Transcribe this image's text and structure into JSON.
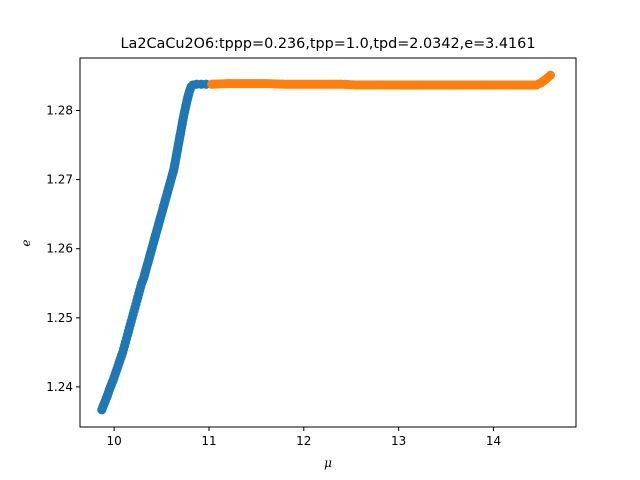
{
  "chart_data": {
    "type": "scatter",
    "title": "La2CaCu2O6:tppp=0.236,tpp=1.0,tpd=2.0342,e=3.4161",
    "xlabel": "μ",
    "ylabel": "e",
    "xlim": [
      9.64,
      14.87
    ],
    "ylim": [
      1.2342,
      1.2876
    ],
    "x_ticks": [
      "10",
      "11",
      "12",
      "13",
      "14"
    ],
    "x_tick_values": [
      10,
      11,
      12,
      13,
      14
    ],
    "y_ticks": [
      "1.24",
      "1.25",
      "1.26",
      "1.27",
      "1.28"
    ],
    "y_tick_values": [
      1.24,
      1.25,
      1.26,
      1.27,
      1.28
    ],
    "grid": false,
    "colors": {
      "series1": "#1f77b4",
      "series2": "#ff7f0e"
    },
    "series": [
      {
        "color": "#1f77b4",
        "points": [
          [
            9.87,
            1.2367
          ],
          [
            9.89,
            1.2374
          ],
          [
            9.91,
            1.2381
          ],
          [
            9.93,
            1.2388
          ],
          [
            9.95,
            1.2396
          ],
          [
            9.97,
            1.2403
          ],
          [
            9.99,
            1.241
          ],
          [
            10.01,
            1.2418
          ],
          [
            10.03,
            1.2426
          ],
          [
            10.05,
            1.2434
          ],
          [
            10.07,
            1.2442
          ],
          [
            10.09,
            1.245
          ],
          [
            10.11,
            1.246
          ],
          [
            10.13,
            1.247
          ],
          [
            10.15,
            1.248
          ],
          [
            10.17,
            1.249
          ],
          [
            10.19,
            1.25
          ],
          [
            10.21,
            1.251
          ],
          [
            10.23,
            1.252
          ],
          [
            10.25,
            1.253
          ],
          [
            10.27,
            1.254
          ],
          [
            10.29,
            1.255
          ],
          [
            10.31,
            1.2557
          ],
          [
            10.63,
            1.2715
          ],
          [
            10.65,
            1.273
          ],
          [
            10.67,
            1.2745
          ],
          [
            10.69,
            1.276
          ],
          [
            10.71,
            1.2775
          ],
          [
            10.73,
            1.279
          ],
          [
            10.75,
            1.2803
          ],
          [
            10.77,
            1.2815
          ],
          [
            10.79,
            1.2826
          ],
          [
            10.81,
            1.2834
          ],
          [
            10.83,
            1.2837
          ],
          [
            10.87,
            1.2838
          ],
          [
            10.92,
            1.2838
          ],
          [
            10.97,
            1.2838
          ]
        ]
      },
      {
        "color": "#ff7f0e",
        "points": [
          [
            11.03,
            1.2838
          ],
          [
            11.2,
            1.2839
          ],
          [
            11.4,
            1.2839
          ],
          [
            11.6,
            1.2839
          ],
          [
            11.8,
            1.2838
          ],
          [
            12.0,
            1.2838
          ],
          [
            12.2,
            1.2838
          ],
          [
            12.4,
            1.2838
          ],
          [
            12.55,
            1.2837
          ],
          [
            12.7,
            1.2837
          ],
          [
            12.9,
            1.2837
          ],
          [
            13.1,
            1.2837
          ],
          [
            13.3,
            1.2837
          ],
          [
            13.5,
            1.2837
          ],
          [
            13.7,
            1.2837
          ],
          [
            13.9,
            1.2837
          ],
          [
            14.1,
            1.2837
          ],
          [
            14.3,
            1.2837
          ],
          [
            14.45,
            1.2837
          ],
          [
            14.5,
            1.284
          ],
          [
            14.55,
            1.2845
          ],
          [
            14.6,
            1.2851
          ]
        ]
      }
    ]
  }
}
